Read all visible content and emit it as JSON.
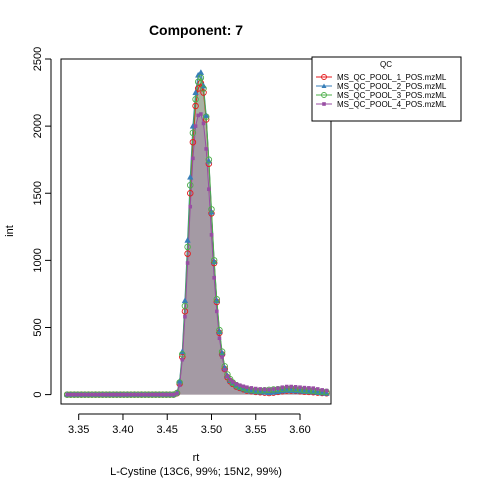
{
  "chart_data": {
    "type": "line",
    "title": "Component: 7",
    "xlabel": "rt",
    "ylabel": "int",
    "subtitle": "L-Cystine (13C6, 99%; 15N2, 99%)",
    "xlim": [
      3.33,
      3.635
    ],
    "ylim": [
      -70,
      2500
    ],
    "xticks": [
      "3.35",
      "3.40",
      "3.45",
      "3.50",
      "3.55",
      "3.60"
    ],
    "yticks": [
      "0",
      "500",
      "1000",
      "1500",
      "2000",
      "2500"
    ],
    "legend": {
      "title": "QC",
      "position": "top-right"
    },
    "series": [
      {
        "name": "MS_QC_POOL_1_POS.mzML",
        "color": "#e41a1c",
        "marker": "circle-open",
        "x": [
          3.337,
          3.341,
          3.345,
          3.349,
          3.353,
          3.357,
          3.361,
          3.365,
          3.369,
          3.373,
          3.377,
          3.381,
          3.385,
          3.389,
          3.393,
          3.397,
          3.401,
          3.405,
          3.409,
          3.413,
          3.417,
          3.421,
          3.425,
          3.429,
          3.433,
          3.437,
          3.441,
          3.445,
          3.449,
          3.453,
          3.457,
          3.461,
          3.464,
          3.467,
          3.47,
          3.473,
          3.476,
          3.479,
          3.482,
          3.485,
          3.488,
          3.491,
          3.494,
          3.497,
          3.5,
          3.503,
          3.506,
          3.509,
          3.512,
          3.515,
          3.518,
          3.521,
          3.524,
          3.528,
          3.532,
          3.536,
          3.54,
          3.545,
          3.55,
          3.555,
          3.56,
          3.565,
          3.57,
          3.575,
          3.58,
          3.585,
          3.59,
          3.595,
          3.6,
          3.605,
          3.61,
          3.615,
          3.62,
          3.625,
          3.63
        ],
        "y": [
          0,
          0,
          0,
          0,
          0,
          0,
          0,
          0,
          0,
          0,
          0,
          0,
          0,
          0,
          0,
          0,
          0,
          0,
          0,
          0,
          0,
          0,
          0,
          0,
          0,
          0,
          0,
          0,
          0,
          0,
          0,
          10,
          80,
          280,
          620,
          1050,
          1500,
          1880,
          2150,
          2280,
          2320,
          2250,
          2050,
          1720,
          1350,
          980,
          690,
          460,
          300,
          190,
          130,
          100,
          80,
          60,
          50,
          40,
          30,
          25,
          20,
          18,
          15,
          12,
          15,
          20,
          25,
          30,
          30,
          28,
          25,
          22,
          20,
          18,
          15,
          12,
          10
        ]
      },
      {
        "name": "MS_QC_POOL_2_POS.mzML",
        "color": "#377eb8",
        "marker": "triangle-filled",
        "x": [
          3.337,
          3.341,
          3.345,
          3.349,
          3.353,
          3.357,
          3.361,
          3.365,
          3.369,
          3.373,
          3.377,
          3.381,
          3.385,
          3.389,
          3.393,
          3.397,
          3.401,
          3.405,
          3.409,
          3.413,
          3.417,
          3.421,
          3.425,
          3.429,
          3.433,
          3.437,
          3.441,
          3.445,
          3.449,
          3.453,
          3.457,
          3.461,
          3.464,
          3.467,
          3.47,
          3.473,
          3.476,
          3.479,
          3.482,
          3.485,
          3.488,
          3.491,
          3.494,
          3.497,
          3.5,
          3.503,
          3.506,
          3.509,
          3.512,
          3.515,
          3.518,
          3.521,
          3.524,
          3.528,
          3.532,
          3.536,
          3.54,
          3.545,
          3.55,
          3.555,
          3.56,
          3.565,
          3.57,
          3.575,
          3.58,
          3.585,
          3.59,
          3.595,
          3.6,
          3.605,
          3.61,
          3.615,
          3.62,
          3.625,
          3.63
        ],
        "y": [
          0,
          0,
          0,
          0,
          0,
          0,
          0,
          0,
          0,
          0,
          0,
          0,
          0,
          0,
          0,
          0,
          0,
          0,
          0,
          0,
          0,
          0,
          0,
          0,
          0,
          0,
          0,
          0,
          0,
          0,
          0,
          15,
          100,
          320,
          700,
          1150,
          1620,
          2000,
          2250,
          2380,
          2400,
          2300,
          2080,
          1740,
          1360,
          990,
          700,
          470,
          310,
          200,
          140,
          105,
          85,
          65,
          52,
          42,
          32,
          26,
          22,
          20,
          18,
          15,
          18,
          22,
          28,
          32,
          30,
          28,
          26,
          24,
          22,
          20,
          16,
          12,
          10
        ]
      },
      {
        "name": "MS_QC_POOL_3_POS.mzML",
        "color": "#4daf4a",
        "marker": "circle-open",
        "x": [
          3.337,
          3.341,
          3.345,
          3.349,
          3.353,
          3.357,
          3.361,
          3.365,
          3.369,
          3.373,
          3.377,
          3.381,
          3.385,
          3.389,
          3.393,
          3.397,
          3.401,
          3.405,
          3.409,
          3.413,
          3.417,
          3.421,
          3.425,
          3.429,
          3.433,
          3.437,
          3.441,
          3.445,
          3.449,
          3.453,
          3.457,
          3.461,
          3.464,
          3.467,
          3.47,
          3.473,
          3.476,
          3.479,
          3.482,
          3.485,
          3.488,
          3.491,
          3.494,
          3.497,
          3.5,
          3.503,
          3.506,
          3.509,
          3.512,
          3.515,
          3.518,
          3.521,
          3.524,
          3.528,
          3.532,
          3.536,
          3.54,
          3.545,
          3.55,
          3.555,
          3.56,
          3.565,
          3.57,
          3.575,
          3.58,
          3.585,
          3.59,
          3.595,
          3.6,
          3.605,
          3.61,
          3.615,
          3.62,
          3.625,
          3.63
        ],
        "y": [
          0,
          0,
          0,
          0,
          0,
          0,
          0,
          0,
          0,
          0,
          0,
          0,
          0,
          0,
          0,
          0,
          0,
          0,
          0,
          0,
          0,
          0,
          0,
          0,
          0,
          0,
          0,
          0,
          0,
          0,
          0,
          12,
          90,
          300,
          660,
          1100,
          1560,
          1950,
          2200,
          2330,
          2360,
          2280,
          2070,
          1750,
          1380,
          1000,
          710,
          480,
          320,
          210,
          150,
          115,
          90,
          70,
          58,
          48,
          40,
          34,
          30,
          30,
          32,
          35,
          38,
          40,
          42,
          45,
          45,
          42,
          38,
          34,
          30,
          28,
          25,
          22,
          20
        ]
      },
      {
        "name": "MS_QC_POOL_4_POS.mzML",
        "color": "#984ea3",
        "marker": "square-filled",
        "x": [
          3.337,
          3.341,
          3.345,
          3.349,
          3.353,
          3.357,
          3.361,
          3.365,
          3.369,
          3.373,
          3.377,
          3.381,
          3.385,
          3.389,
          3.393,
          3.397,
          3.401,
          3.405,
          3.409,
          3.413,
          3.417,
          3.421,
          3.425,
          3.429,
          3.433,
          3.437,
          3.441,
          3.445,
          3.449,
          3.453,
          3.457,
          3.461,
          3.464,
          3.467,
          3.47,
          3.473,
          3.476,
          3.479,
          3.482,
          3.485,
          3.488,
          3.491,
          3.494,
          3.497,
          3.5,
          3.503,
          3.506,
          3.509,
          3.512,
          3.515,
          3.518,
          3.521,
          3.524,
          3.528,
          3.532,
          3.536,
          3.54,
          3.545,
          3.55,
          3.555,
          3.56,
          3.565,
          3.57,
          3.575,
          3.58,
          3.585,
          3.59,
          3.595,
          3.6,
          3.605,
          3.61,
          3.615,
          3.62,
          3.625,
          3.63
        ],
        "y": [
          0,
          0,
          0,
          0,
          0,
          0,
          0,
          0,
          0,
          0,
          0,
          0,
          0,
          0,
          0,
          0,
          0,
          0,
          0,
          0,
          0,
          0,
          0,
          0,
          0,
          0,
          0,
          0,
          0,
          0,
          0,
          8,
          70,
          260,
          580,
          980,
          1400,
          1760,
          2000,
          2080,
          2090,
          2020,
          1830,
          1530,
          1190,
          870,
          620,
          420,
          280,
          185,
          135,
          110,
          95,
          80,
          70,
          62,
          55,
          50,
          45,
          42,
          40,
          38,
          42,
          48,
          55,
          60,
          60,
          58,
          55,
          52,
          50,
          48,
          42,
          35,
          30
        ]
      }
    ]
  }
}
